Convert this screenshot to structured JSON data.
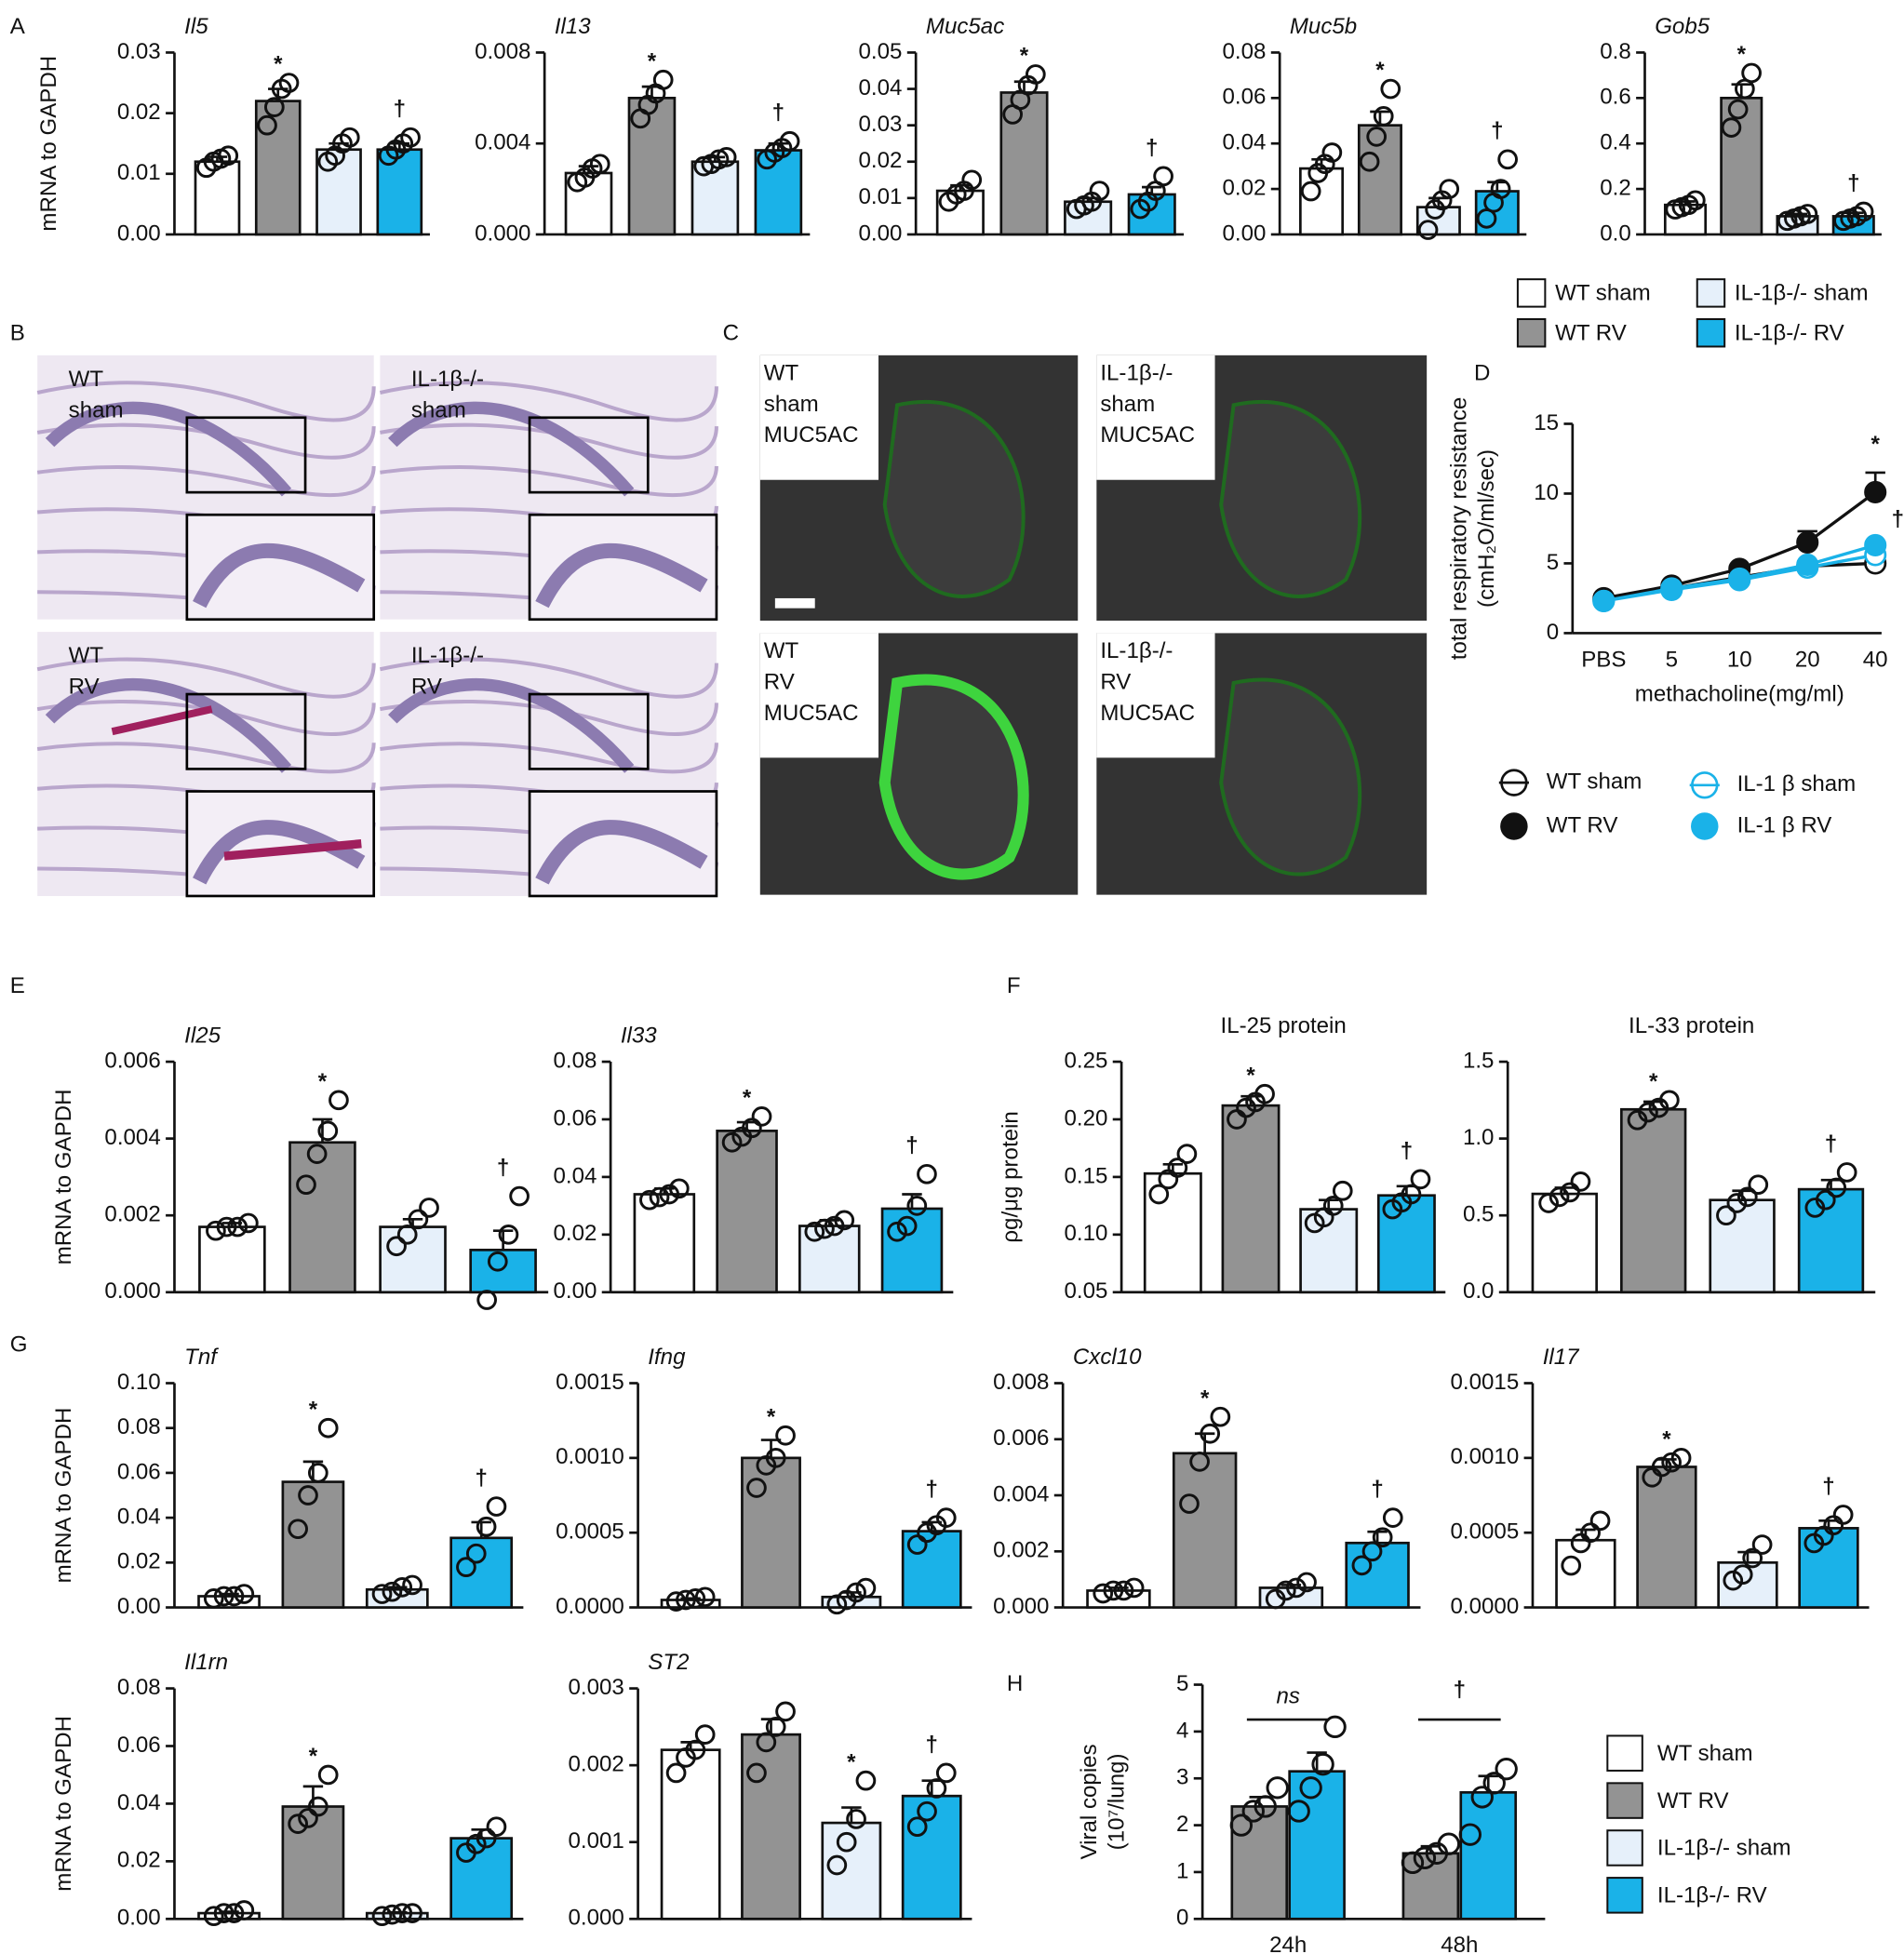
{
  "panel_labels": [
    "A",
    "B",
    "C",
    "D",
    "E",
    "F",
    "G",
    "H"
  ],
  "groups": [
    {
      "name": "WT sham",
      "color": "#ffffff"
    },
    {
      "name": "WT RV",
      "color": "#939393"
    },
    {
      "name": "IL-1β-/- sham",
      "color": "#e6f0fa"
    },
    {
      "name": "IL-1β-/- RV",
      "color": "#1ab2e8"
    }
  ],
  "histology": {
    "panels": [
      {
        "lines": [
          "WT",
          "sham"
        ]
      },
      {
        "lines": [
          "IL-1β-/-",
          "sham"
        ]
      },
      {
        "lines": [
          "WT",
          "RV"
        ]
      },
      {
        "lines": [
          "IL-1β-/-",
          "RV"
        ]
      }
    ]
  },
  "immunofluorescence": {
    "stain": "MUC5AC",
    "panels": [
      {
        "lines": [
          "WT",
          "sham"
        ]
      },
      {
        "lines": [
          "IL-1β-/-",
          "sham"
        ]
      },
      {
        "lines": [
          "WT",
          "RV"
        ]
      },
      {
        "lines": [
          "IL-1β-/-",
          "RV"
        ]
      }
    ]
  },
  "chart_data": [
    {
      "type": "bar",
      "title": "Il5",
      "italic": true,
      "ylabel": "mRNA to GAPDH",
      "ylim": [
        0,
        0.03
      ],
      "yticks": [
        {
          "value": 0,
          "label": "0.00"
        },
        0.01,
        0.02,
        0.03
      ],
      "values": [
        0.012,
        0.022,
        0.014,
        0.014
      ],
      "errors": [
        0.0008,
        0.002,
        0.001,
        0.001
      ],
      "points": [
        [
          0.011,
          0.012,
          0.0125,
          0.013
        ],
        [
          0.018,
          0.021,
          0.024,
          0.025
        ],
        [
          0.012,
          0.013,
          0.015,
          0.016
        ],
        [
          0.013,
          0.014,
          0.015,
          0.016
        ]
      ],
      "marks": [
        null,
        "*",
        null,
        "†"
      ]
    },
    {
      "type": "bar",
      "title": "Il13",
      "italic": true,
      "ylim": [
        0,
        0.008
      ],
      "yticks": [
        {
          "value": 0,
          "label": "0.000"
        },
        0.004,
        0.008
      ],
      "values": [
        0.0027,
        0.006,
        0.0032,
        0.0037
      ],
      "errors": [
        0.0003,
        0.0005,
        0.0002,
        0.0003
      ],
      "points": [
        [
          0.0023,
          0.0025,
          0.0029,
          0.0031
        ],
        [
          0.0051,
          0.0057,
          0.0062,
          0.0068
        ],
        [
          0.003,
          0.0031,
          0.0033,
          0.0034
        ],
        [
          0.0033,
          0.0036,
          0.0038,
          0.0041
        ]
      ],
      "marks": [
        null,
        "*",
        null,
        "†"
      ]
    },
    {
      "type": "bar",
      "title": "Muc5ac",
      "italic": true,
      "ylim": [
        0,
        0.05
      ],
      "yticks": [
        {
          "value": 0,
          "label": "0.00"
        },
        0.01,
        0.02,
        0.03,
        0.04,
        0.05
      ],
      "values": [
        0.012,
        0.039,
        0.009,
        0.011
      ],
      "errors": [
        0.0015,
        0.003,
        0.001,
        0.002
      ],
      "points": [
        [
          0.009,
          0.011,
          0.012,
          0.015
        ],
        [
          0.033,
          0.037,
          0.041,
          0.044
        ],
        [
          0.007,
          0.008,
          0.009,
          0.012
        ],
        [
          0.007,
          0.009,
          0.012,
          0.016
        ]
      ],
      "marks": [
        null,
        "*",
        null,
        "†"
      ]
    },
    {
      "type": "bar",
      "title": "Muc5b",
      "italic": true,
      "ylim": [
        0,
        0.08
      ],
      "yticks": [
        {
          "value": 0,
          "label": "0.00"
        },
        0.02,
        0.04,
        0.06,
        0.08
      ],
      "values": [
        0.029,
        0.048,
        0.012,
        0.019
      ],
      "errors": [
        0.004,
        0.006,
        0.004,
        0.004
      ],
      "points": [
        [
          0.019,
          0.027,
          0.031,
          0.036
        ],
        [
          0.032,
          0.043,
          0.052,
          0.064
        ],
        [
          0.002,
          0.011,
          0.015,
          0.02
        ],
        [
          0.007,
          0.014,
          0.02,
          0.033
        ]
      ],
      "marks": [
        null,
        "*",
        null,
        "†"
      ]
    },
    {
      "type": "bar",
      "title": "Gob5",
      "italic": true,
      "ylim": [
        0,
        0.8
      ],
      "yticks": [
        {
          "value": 0,
          "label": "0.0"
        },
        0.2,
        0.4,
        0.6,
        0.8
      ],
      "values": [
        0.13,
        0.6,
        0.08,
        0.08
      ],
      "errors": [
        0.015,
        0.06,
        0.01,
        0.015
      ],
      "points": [
        [
          0.11,
          0.12,
          0.13,
          0.15
        ],
        [
          0.47,
          0.55,
          0.64,
          0.71
        ],
        [
          0.06,
          0.07,
          0.08,
          0.09
        ],
        [
          0.06,
          0.07,
          0.08,
          0.1
        ]
      ],
      "marks": [
        null,
        "*",
        null,
        "†"
      ]
    },
    {
      "type": "line",
      "ylabel": [
        "total respiratory resistance",
        "(cmH₂O/ml/sec)"
      ],
      "xlabel": "methacholine(mg/ml)",
      "categories": [
        "PBS",
        "5",
        "10",
        "20",
        "40"
      ],
      "ylim": [
        0,
        15
      ],
      "yticks": [
        0,
        5,
        10,
        15
      ],
      "series": [
        {
          "name": "WT sham",
          "color": "#111111",
          "filled": false,
          "values": [
            2.4,
            3.2,
            4.0,
            4.8,
            5.0
          ]
        },
        {
          "name": "WT RV",
          "color": "#111111",
          "filled": true,
          "values": [
            2.5,
            3.4,
            4.6,
            6.5,
            10.1
          ],
          "errors": [
            0.2,
            0.2,
            0.3,
            0.8,
            1.4
          ],
          "marks": [
            null,
            null,
            null,
            null,
            "*"
          ]
        },
        {
          "name": "IL-1 β sham",
          "color": "#1ab2e8",
          "filled": false,
          "values": [
            2.3,
            3.1,
            3.8,
            4.7,
            5.6
          ]
        },
        {
          "name": "IL-1 β RV",
          "color": "#1ab2e8",
          "filled": true,
          "values": [
            2.3,
            3.2,
            3.9,
            4.9,
            6.3
          ],
          "marks": [
            null,
            null,
            null,
            null,
            "†"
          ]
        }
      ]
    },
    {
      "type": "bar",
      "title": "Il25",
      "italic": true,
      "ylabel": "mRNA to GAPDH",
      "ylim": [
        0,
        0.006
      ],
      "yticks": [
        {
          "value": 0,
          "label": "0.000"
        },
        0.002,
        0.004,
        0.006
      ],
      "values": [
        0.0017,
        0.0039,
        0.0017,
        0.0011
      ],
      "errors": [
        0.0001,
        0.0006,
        0.0002,
        0.0005
      ],
      "points": [
        [
          0.0016,
          0.0017,
          0.0017,
          0.0018
        ],
        [
          0.0028,
          0.0036,
          0.0042,
          0.005
        ],
        [
          0.0012,
          0.0015,
          0.0019,
          0.0022
        ],
        [
          -0.0002,
          0.0008,
          0.0015,
          0.0025
        ]
      ],
      "marks": [
        null,
        "*",
        null,
        "†"
      ]
    },
    {
      "type": "bar",
      "title": "Il33",
      "italic": true,
      "ylim": [
        0,
        0.08
      ],
      "yticks": [
        {
          "value": 0,
          "label": "0.00"
        },
        0.02,
        0.04,
        0.06,
        0.08
      ],
      "values": [
        0.034,
        0.056,
        0.023,
        0.029
      ],
      "errors": [
        0.002,
        0.003,
        0.002,
        0.005
      ],
      "points": [
        [
          0.032,
          0.033,
          0.034,
          0.036
        ],
        [
          0.052,
          0.054,
          0.057,
          0.061
        ],
        [
          0.021,
          0.022,
          0.023,
          0.025
        ],
        [
          0.021,
          0.023,
          0.03,
          0.041
        ]
      ],
      "marks": [
        null,
        "*",
        null,
        "†"
      ]
    },
    {
      "type": "bar",
      "title": "IL-25 protein",
      "italic": false,
      "ylabel": "ρg/μg protein",
      "ylim": [
        0.05,
        0.25
      ],
      "yticks": [
        0.05,
        {
          "value": 0.1,
          "label": "0.10"
        },
        0.15,
        {
          "value": 0.2,
          "label": "0.20"
        },
        0.25
      ],
      "values": [
        0.153,
        0.212,
        0.122,
        0.134
      ],
      "errors": [
        0.008,
        0.008,
        0.008,
        0.008
      ],
      "points": [
        [
          0.135,
          0.148,
          0.158,
          0.17
        ],
        [
          0.2,
          0.21,
          0.215,
          0.222
        ],
        [
          0.11,
          0.115,
          0.125,
          0.138
        ],
        [
          0.122,
          0.128,
          0.135,
          0.148
        ]
      ],
      "marks": [
        null,
        "*",
        null,
        "†"
      ]
    },
    {
      "type": "bar",
      "title": "IL-33 protein",
      "italic": false,
      "ylim": [
        0,
        1.5
      ],
      "yticks": [
        {
          "value": 0,
          "label": "0.0"
        },
        0.5,
        {
          "value": 1,
          "label": "1.0"
        },
        1.5
      ],
      "values": [
        0.64,
        1.19,
        0.6,
        0.67
      ],
      "errors": [
        0.04,
        0.05,
        0.06,
        0.06
      ],
      "points": [
        [
          0.58,
          0.62,
          0.65,
          0.72
        ],
        [
          1.12,
          1.17,
          1.2,
          1.25
        ],
        [
          0.5,
          0.58,
          0.62,
          0.7
        ],
        [
          0.55,
          0.6,
          0.68,
          0.78
        ]
      ],
      "marks": [
        null,
        "*",
        null,
        "†"
      ]
    },
    {
      "type": "bar",
      "title": "Tnf",
      "italic": true,
      "ylabel": "mRNA to GAPDH",
      "ylim": [
        0,
        0.1
      ],
      "yticks": [
        {
          "value": 0,
          "label": "0.00"
        },
        0.02,
        0.04,
        0.06,
        0.08,
        {
          "value": 0.1,
          "label": "0.10"
        }
      ],
      "values": [
        0.005,
        0.056,
        0.008,
        0.031
      ],
      "errors": [
        0.001,
        0.009,
        0.001,
        0.007
      ],
      "points": [
        [
          0.004,
          0.005,
          0.005,
          0.006
        ],
        [
          0.035,
          0.05,
          0.06,
          0.08
        ],
        [
          0.006,
          0.007,
          0.009,
          0.01
        ],
        [
          0.018,
          0.024,
          0.036,
          0.045
        ]
      ],
      "marks": [
        null,
        "*",
        null,
        "†"
      ]
    },
    {
      "type": "bar",
      "title": "Ifng",
      "italic": true,
      "ylim": [
        0,
        0.0015
      ],
      "yticks": [
        {
          "value": 0,
          "label": "0.0000"
        },
        0.0005,
        {
          "value": 0.001,
          "label": "0.0010"
        },
        0.0015
      ],
      "values": [
        5e-05,
        0.001,
        7e-05,
        0.00051
      ],
      "errors": [
        1e-05,
        0.00012,
        3e-05,
        6e-05
      ],
      "points": [
        [
          4e-05,
          5e-05,
          6e-05,
          7e-05
        ],
        [
          0.0008,
          0.00095,
          0.001,
          0.00115
        ],
        [
          2e-05,
          5e-05,
          0.0001,
          0.00013
        ],
        [
          0.00042,
          0.0005,
          0.00055,
          0.0006
        ]
      ],
      "marks": [
        null,
        "*",
        null,
        "†"
      ]
    },
    {
      "type": "bar",
      "title": "Cxcl10",
      "italic": true,
      "ylim": [
        0,
        0.008
      ],
      "yticks": [
        {
          "value": 0,
          "label": "0.000"
        },
        0.002,
        0.004,
        0.006,
        0.008
      ],
      "values": [
        0.0006,
        0.0055,
        0.0007,
        0.0023
      ],
      "errors": [
        0.0001,
        0.0007,
        0.0001,
        0.0004
      ],
      "points": [
        [
          0.0005,
          0.0006,
          0.0006,
          0.0007
        ],
        [
          0.0037,
          0.0052,
          0.0062,
          0.0068
        ],
        [
          0.0003,
          0.0006,
          0.0007,
          0.0009
        ],
        [
          0.0015,
          0.002,
          0.0025,
          0.0032
        ]
      ],
      "marks": [
        null,
        "*",
        null,
        "†"
      ]
    },
    {
      "type": "bar",
      "title": "Il17",
      "italic": true,
      "ylim": [
        0,
        0.0015
      ],
      "yticks": [
        {
          "value": 0,
          "label": "0.0000"
        },
        0.0005,
        {
          "value": 0.001,
          "label": "0.0010"
        },
        0.0015
      ],
      "values": [
        0.00045,
        0.00094,
        0.0003,
        0.00053
      ],
      "errors": [
        7e-05,
        5e-05,
        7e-05,
        5e-05
      ],
      "points": [
        [
          0.00028,
          0.00043,
          0.0005,
          0.00058
        ],
        [
          0.00087,
          0.00094,
          0.00097,
          0.001
        ],
        [
          0.00018,
          0.00022,
          0.00033,
          0.00042
        ],
        [
          0.00043,
          0.00048,
          0.00055,
          0.00062
        ]
      ],
      "marks": [
        null,
        "*",
        null,
        "†"
      ]
    },
    {
      "type": "bar",
      "title": "Il1rn",
      "italic": true,
      "ylabel": "mRNA to GAPDH",
      "ylim": [
        0,
        0.08
      ],
      "yticks": [
        {
          "value": 0,
          "label": "0.00"
        },
        0.02,
        0.04,
        0.06,
        0.08
      ],
      "values": [
        0.002,
        0.039,
        0.002,
        0.028
      ],
      "errors": [
        0.0005,
        0.007,
        0.0003,
        0.003
      ],
      "points": [
        [
          0.001,
          0.002,
          0.002,
          0.003
        ],
        [
          0.033,
          0.035,
          0.039,
          0.05
        ],
        [
          0.001,
          0.0015,
          0.002,
          0.002
        ],
        [
          0.023,
          0.026,
          0.028,
          0.032
        ]
      ],
      "marks": [
        null,
        "*",
        null,
        null
      ]
    },
    {
      "type": "bar",
      "title": "ST2",
      "italic": true,
      "ylim": [
        0,
        0.003
      ],
      "yticks": [
        {
          "value": 0,
          "label": "0.000"
        },
        0.001,
        0.002,
        0.003
      ],
      "values": [
        0.0022,
        0.0024,
        0.00125,
        0.0016
      ],
      "errors": [
        0.0001,
        0.0002,
        0.0002,
        0.0002
      ],
      "points": [
        [
          0.0019,
          0.0021,
          0.0022,
          0.0024
        ],
        [
          0.0019,
          0.0023,
          0.0025,
          0.0027
        ],
        [
          0.0007,
          0.001,
          0.0013,
          0.0018
        ],
        [
          0.0012,
          0.0014,
          0.0017,
          0.0019
        ]
      ],
      "marks": [
        null,
        null,
        "*",
        "†"
      ]
    },
    {
      "type": "grouped_bar",
      "ylabel": [
        "Viral copies",
        "(10⁷/lung)"
      ],
      "categories": [
        "24h",
        "48h"
      ],
      "ylim": [
        0,
        5
      ],
      "yticks": [
        0,
        1,
        2,
        3,
        4,
        5
      ],
      "brackets": [
        "ns",
        "†"
      ],
      "series": [
        {
          "color": "#939393",
          "values": [
            2.4,
            1.4
          ],
          "errors": [
            0.2,
            0.15
          ],
          "points": [
            [
              2.0,
              2.3,
              2.4,
              2.8
            ],
            [
              1.2,
              1.3,
              1.4,
              1.6
            ]
          ]
        },
        {
          "color": "#1ab2e8",
          "values": [
            3.15,
            2.7
          ],
          "errors": [
            0.4,
            0.35
          ],
          "points": [
            [
              2.3,
              2.8,
              3.3,
              4.1
            ],
            [
              1.8,
              2.6,
              2.9,
              3.2
            ]
          ]
        }
      ]
    }
  ]
}
